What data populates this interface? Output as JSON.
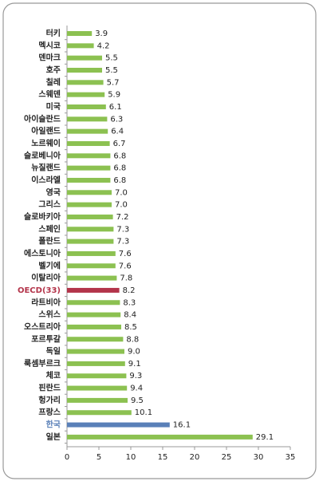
{
  "chart_data": {
    "type": "hbar",
    "categories": [
      "터키",
      "멕시코",
      "덴마크",
      "호주",
      "칠레",
      "스웨덴",
      "미국",
      "아이슬란드",
      "아일랜드",
      "노르웨이",
      "슬로베니아",
      "뉴질랜드",
      "이스라엘",
      "영국",
      "그리스",
      "슬로바키아",
      "스페인",
      "폴란드",
      "에스토니아",
      "벨기에",
      "이탈리아",
      "OECD(33)",
      "라트비아",
      "스위스",
      "오스트리아",
      "포르투갈",
      "독일",
      "룩셈부르크",
      "체코",
      "핀란드",
      "헝가리",
      "프랑스",
      "한국",
      "일본"
    ],
    "values": [
      3.9,
      4.2,
      5.5,
      5.5,
      5.7,
      5.9,
      6.1,
      6.3,
      6.4,
      6.7,
      6.8,
      6.8,
      6.8,
      7,
      7,
      7.2,
      7.3,
      7.3,
      7.6,
      7.6,
      7.8,
      8.2,
      8.3,
      8.4,
      8.5,
      8.8,
      9,
      9.1,
      9.3,
      9.4,
      9.5,
      10.1,
      16.1,
      29.1
    ],
    "value_labels": [
      "3.9",
      "4.2",
      "5.5",
      "5.5",
      "5.7",
      "5.9",
      "6.1",
      "6.3",
      "6.4",
      "6.7",
      "6.8",
      "6.8",
      "6.8",
      "7.0",
      "7.0",
      "7.2",
      "7.3",
      "7.3",
      "7.6",
      "7.6",
      "7.8",
      "8.2",
      "8.3",
      "8.4",
      "8.5",
      "8.8",
      "9.0",
      "9.1",
      "9.3",
      "9.4",
      "9.5",
      "10.1",
      "16.1",
      "29.1"
    ],
    "color": "#8cc151",
    "highlight": [
      {
        "category": "OECD(33)",
        "color": "#b3344a"
      },
      {
        "category": "한국",
        "color": "#5a80b8"
      }
    ],
    "xlim": [
      0,
      35
    ],
    "xticks": [
      0,
      5,
      10,
      15,
      20,
      25,
      30,
      35
    ],
    "grid": false
  }
}
